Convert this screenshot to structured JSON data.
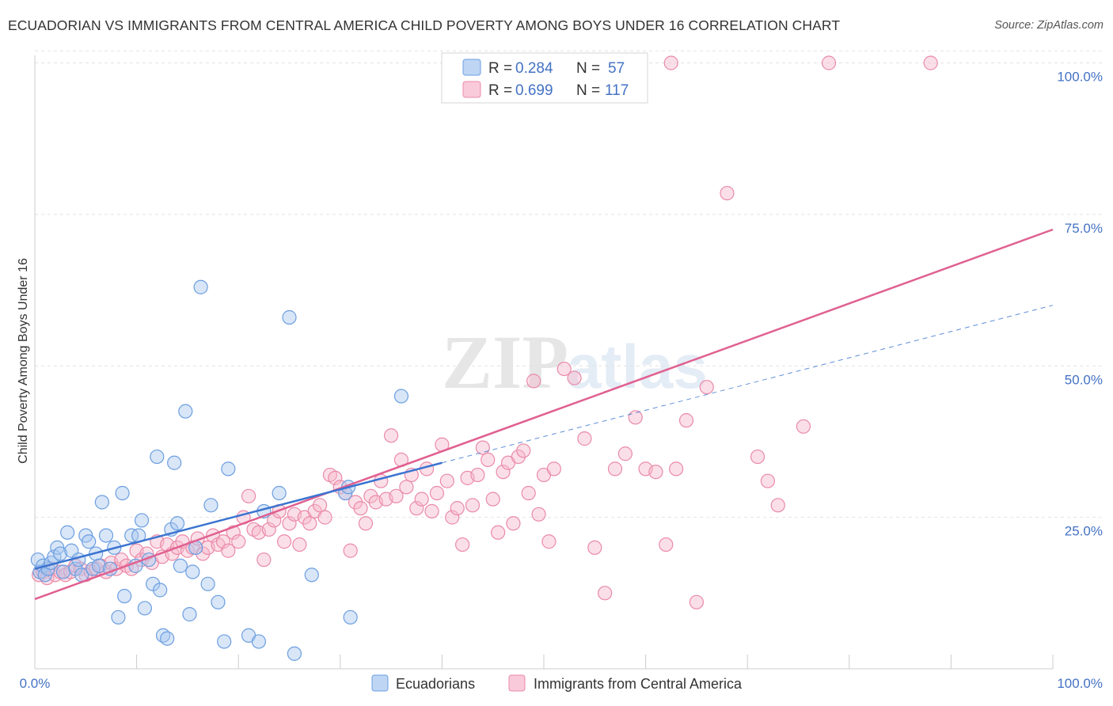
{
  "title": "ECUADORIAN VS IMMIGRANTS FROM CENTRAL AMERICA CHILD POVERTY AMONG BOYS UNDER 16 CORRELATION CHART",
  "source": "Source: ZipAtlas.com",
  "watermark": {
    "zip": "ZIP",
    "atlas": "atlas"
  },
  "colors": {
    "blue_fill": "#a8c8f0",
    "blue_stroke": "#6c9ee0",
    "blue_line": "#3a74d0",
    "pink_fill": "#f7b8cc",
    "pink_stroke": "#ea8aa8",
    "pink_line": "#e06090",
    "axis_label": "#4472c4",
    "grid": "#e2e2e2"
  },
  "legend": {
    "rows": [
      {
        "r_label": "R = ",
        "r_value": "0.284",
        "n_label": "N = ",
        "n_value": "57",
        "series": "blue"
      },
      {
        "r_label": "R = ",
        "r_value": "0.699",
        "n_label": "N = ",
        "n_value": "117",
        "series": "pink"
      }
    ]
  },
  "chart_data": {
    "type": "scatter",
    "title": "ECUADORIAN VS IMMIGRANTS FROM CENTRAL AMERICA CHILD POVERTY AMONG BOYS UNDER 16 CORRELATION CHART",
    "xlabel": "",
    "ylabel": "Child Poverty Among Boys Under 16",
    "xlim": [
      0,
      100
    ],
    "ylim": [
      0,
      102
    ],
    "x_tick_labels": [
      "0.0%",
      "100.0%"
    ],
    "y_ticks": [
      25,
      50,
      75,
      100
    ],
    "y_tick_labels": [
      "25.0%",
      "50.0%",
      "75.0%",
      "100.0%"
    ],
    "grid": true,
    "legend_position": "top-center",
    "series": [
      {
        "name": "Ecuadorians",
        "color": "blue",
        "R": 0.284,
        "N": 57,
        "trend": {
          "x0": 0,
          "y0": 16.5,
          "x1": 40,
          "y1": 34,
          "dash_x_end": 100,
          "dash_y_end": 60
        },
        "points": [
          [
            0.3,
            18.0
          ],
          [
            0.5,
            16.0
          ],
          [
            0.8,
            17.0
          ],
          [
            1.0,
            15.5
          ],
          [
            1.3,
            16.5
          ],
          [
            1.6,
            17.5
          ],
          [
            1.9,
            18.5
          ],
          [
            2.2,
            20.0
          ],
          [
            2.5,
            19.0
          ],
          [
            2.8,
            16.0
          ],
          [
            3.2,
            22.5
          ],
          [
            3.6,
            19.5
          ],
          [
            4.0,
            16.5
          ],
          [
            4.3,
            18.0
          ],
          [
            4.6,
            15.5
          ],
          [
            5.0,
            22.0
          ],
          [
            5.3,
            21.0
          ],
          [
            5.7,
            16.5
          ],
          [
            6.0,
            19.0
          ],
          [
            6.3,
            17.0
          ],
          [
            6.6,
            27.5
          ],
          [
            7.0,
            22.0
          ],
          [
            7.4,
            16.5
          ],
          [
            7.8,
            20.0
          ],
          [
            8.2,
            8.5
          ],
          [
            8.6,
            29.0
          ],
          [
            8.8,
            12.0
          ],
          [
            9.5,
            22.0
          ],
          [
            9.9,
            17.0
          ],
          [
            10.2,
            22.0
          ],
          [
            10.5,
            24.5
          ],
          [
            10.8,
            10.0
          ],
          [
            11.2,
            18.0
          ],
          [
            11.6,
            14.0
          ],
          [
            12.0,
            35.0
          ],
          [
            12.3,
            13.0
          ],
          [
            12.6,
            5.5
          ],
          [
            13.0,
            5.0
          ],
          [
            13.4,
            23.0
          ],
          [
            13.7,
            34.0
          ],
          [
            14.0,
            24.0
          ],
          [
            14.3,
            17.0
          ],
          [
            14.8,
            42.5
          ],
          [
            15.2,
            9.0
          ],
          [
            15.5,
            16.0
          ],
          [
            15.8,
            20.0
          ],
          [
            16.3,
            63.0
          ],
          [
            17.0,
            14.0
          ],
          [
            17.3,
            27.0
          ],
          [
            18.0,
            11.0
          ],
          [
            18.6,
            4.5
          ],
          [
            19.0,
            33.0
          ],
          [
            21.0,
            5.5
          ],
          [
            22.0,
            4.5
          ],
          [
            22.5,
            26.0
          ],
          [
            24.0,
            29.0
          ],
          [
            25.0,
            58.0
          ],
          [
            25.5,
            2.5
          ],
          [
            27.2,
            15.5
          ],
          [
            30.5,
            29.0
          ],
          [
            30.8,
            30.0
          ],
          [
            31.0,
            8.5
          ],
          [
            36.0,
            45.0
          ]
        ]
      },
      {
        "name": "Immigrants from Central America",
        "color": "pink",
        "R": 0.699,
        "N": 117,
        "trend": {
          "x0": 0,
          "y0": 11.5,
          "x1": 100,
          "y1": 72.5
        },
        "points": [
          [
            0.4,
            15.5
          ],
          [
            0.8,
            16.0
          ],
          [
            1.2,
            15.0
          ],
          [
            1.6,
            16.5
          ],
          [
            2.0,
            15.5
          ],
          [
            2.5,
            16.0
          ],
          [
            3.0,
            15.5
          ],
          [
            3.5,
            16.0
          ],
          [
            4.0,
            17.0
          ],
          [
            4.5,
            16.5
          ],
          [
            5.0,
            15.5
          ],
          [
            5.5,
            16.0
          ],
          [
            6.0,
            16.5
          ],
          [
            6.5,
            17.0
          ],
          [
            7.0,
            16.0
          ],
          [
            7.5,
            17.5
          ],
          [
            8.0,
            16.5
          ],
          [
            8.5,
            18.0
          ],
          [
            9.0,
            17.0
          ],
          [
            9.5,
            16.5
          ],
          [
            10.0,
            19.5
          ],
          [
            10.5,
            18.0
          ],
          [
            11.0,
            19.0
          ],
          [
            11.5,
            17.5
          ],
          [
            12.0,
            21.0
          ],
          [
            12.5,
            18.5
          ],
          [
            13.0,
            20.5
          ],
          [
            13.5,
            19.0
          ],
          [
            14.0,
            20.0
          ],
          [
            14.5,
            21.0
          ],
          [
            15.0,
            19.5
          ],
          [
            15.5,
            20.0
          ],
          [
            16.0,
            21.5
          ],
          [
            16.5,
            19.0
          ],
          [
            17.0,
            20.0
          ],
          [
            17.5,
            22.0
          ],
          [
            18.0,
            20.5
          ],
          [
            18.5,
            21.0
          ],
          [
            19.0,
            19.5
          ],
          [
            19.5,
            22.5
          ],
          [
            20.0,
            21.0
          ],
          [
            20.5,
            25.0
          ],
          [
            21.0,
            28.5
          ],
          [
            21.5,
            23.0
          ],
          [
            22.0,
            22.5
          ],
          [
            22.5,
            18.0
          ],
          [
            23.0,
            23.0
          ],
          [
            23.5,
            24.5
          ],
          [
            24.0,
            26.0
          ],
          [
            24.5,
            21.0
          ],
          [
            25.0,
            24.0
          ],
          [
            25.5,
            25.5
          ],
          [
            26.0,
            20.5
          ],
          [
            26.5,
            25.0
          ],
          [
            27.0,
            24.0
          ],
          [
            27.5,
            26.0
          ],
          [
            28.0,
            27.0
          ],
          [
            28.5,
            25.0
          ],
          [
            29.0,
            32.0
          ],
          [
            29.5,
            31.5
          ],
          [
            30.0,
            30.0
          ],
          [
            30.5,
            29.0
          ],
          [
            31.0,
            19.5
          ],
          [
            31.5,
            27.5
          ],
          [
            32.0,
            26.5
          ],
          [
            32.5,
            24.0
          ],
          [
            33.0,
            28.5
          ],
          [
            33.5,
            27.5
          ],
          [
            34.0,
            31.0
          ],
          [
            34.5,
            28.0
          ],
          [
            35.0,
            38.5
          ],
          [
            35.5,
            28.5
          ],
          [
            36.0,
            34.5
          ],
          [
            36.5,
            30.0
          ],
          [
            37.0,
            32.0
          ],
          [
            37.5,
            26.5
          ],
          [
            38.0,
            28.0
          ],
          [
            38.5,
            33.0
          ],
          [
            39.0,
            26.0
          ],
          [
            39.5,
            29.0
          ],
          [
            40.0,
            37.0
          ],
          [
            40.5,
            31.0
          ],
          [
            41.0,
            25.0
          ],
          [
            41.5,
            26.5
          ],
          [
            42.0,
            20.5
          ],
          [
            42.5,
            31.5
          ],
          [
            43.0,
            27.0
          ],
          [
            43.5,
            32.0
          ],
          [
            44.0,
            36.5
          ],
          [
            44.5,
            34.5
          ],
          [
            45.0,
            28.0
          ],
          [
            45.5,
            22.5
          ],
          [
            46.0,
            32.5
          ],
          [
            46.5,
            34.0
          ],
          [
            47.0,
            24.0
          ],
          [
            47.5,
            35.0
          ],
          [
            48.0,
            36.0
          ],
          [
            48.5,
            29.0
          ],
          [
            49.0,
            47.5
          ],
          [
            49.5,
            25.5
          ],
          [
            50.0,
            32.0
          ],
          [
            50.5,
            21.0
          ],
          [
            51.0,
            33.0
          ],
          [
            52.0,
            49.5
          ],
          [
            53.0,
            48.0
          ],
          [
            54.0,
            38.0
          ],
          [
            55.0,
            20.0
          ],
          [
            56.0,
            12.5
          ],
          [
            57.0,
            33.0
          ],
          [
            58.0,
            35.5
          ],
          [
            59.0,
            41.5
          ],
          [
            60.0,
            33.0
          ],
          [
            61.0,
            32.5
          ],
          [
            62.0,
            20.5
          ],
          [
            63.0,
            33.0
          ],
          [
            64.0,
            41.0
          ],
          [
            65.0,
            11.0
          ],
          [
            66.0,
            46.5
          ],
          [
            68.0,
            78.5
          ],
          [
            71.0,
            35.0
          ],
          [
            72.0,
            31.0
          ],
          [
            73.0,
            27.0
          ],
          [
            75.5,
            40.0
          ],
          [
            62.5,
            100.0
          ],
          [
            78.0,
            100.0
          ],
          [
            88.0,
            100.0
          ]
        ]
      }
    ]
  },
  "bottom_legend": [
    {
      "label": "Ecuadorians",
      "series": "blue"
    },
    {
      "label": "Immigrants from Central America",
      "series": "pink"
    }
  ]
}
